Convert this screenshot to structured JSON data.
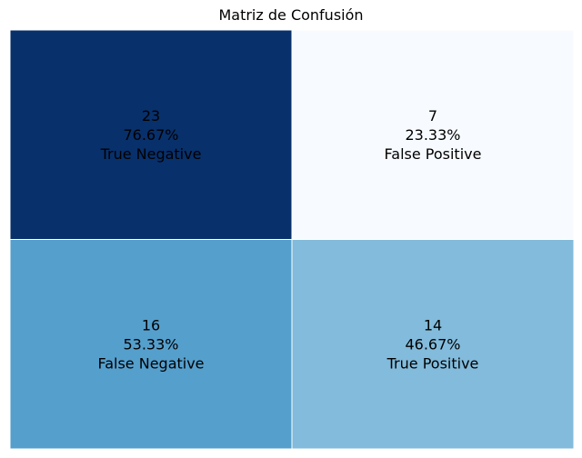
{
  "chart_data": {
    "type": "heatmap",
    "title": "Matriz de Confusión",
    "rows": 2,
    "cols": 2,
    "vmin": 7,
    "vmax": 23,
    "colormap": "Blues",
    "cells": [
      {
        "row": 0,
        "col": 0,
        "count": "23",
        "percent": "76.67%",
        "label": "True Negative",
        "color": "#08306b",
        "text_color": "#ffffff"
      },
      {
        "row": 0,
        "col": 1,
        "count": "7",
        "percent": "23.33%",
        "label": "False Positive",
        "color": "#f7fbff",
        "text_color": "#000000"
      },
      {
        "row": 1,
        "col": 0,
        "count": "16",
        "percent": "53.33%",
        "label": "False Negative",
        "color": "#559fcd",
        "text_color": "#000000"
      },
      {
        "row": 1,
        "col": 1,
        "count": "14",
        "percent": "46.67%",
        "label": "True Positive",
        "color": "#82bbdb",
        "text_color": "#000000"
      }
    ]
  }
}
